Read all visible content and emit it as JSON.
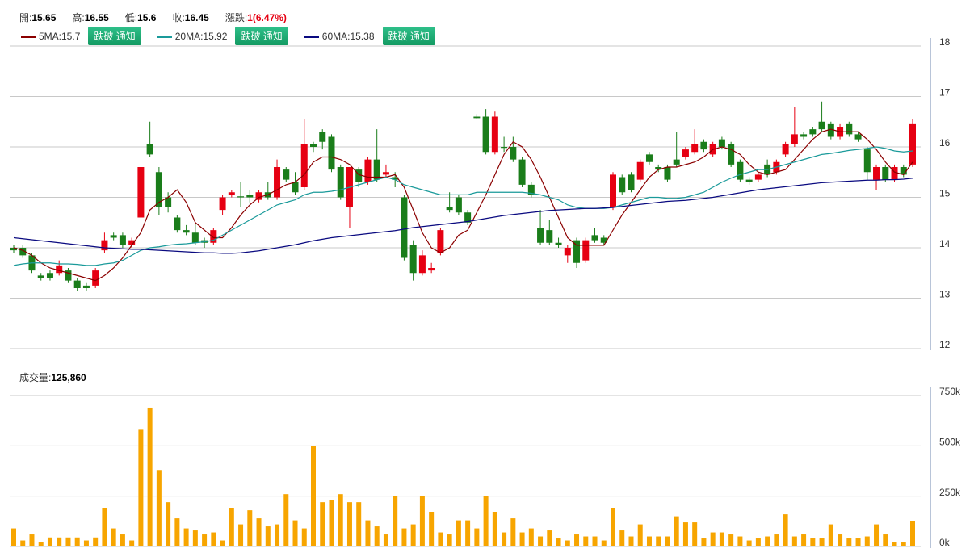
{
  "header": {
    "items": [
      {
        "label": "開:",
        "value": "15.65"
      },
      {
        "label": "高:",
        "value": "16.55"
      },
      {
        "label": "低:",
        "value": "15.6"
      },
      {
        "label": "收:",
        "value": "16.45"
      },
      {
        "label": "漲跌:",
        "value": "1(6.47%)"
      }
    ],
    "button": "跌破 通知",
    "volume_label": "成交量:",
    "volume_value": "125,860"
  },
  "chart_data": [
    {
      "type": "candlestick",
      "up_color": "#e60012",
      "down_color": "#1a7d1a",
      "ylim": [
        12,
        18
      ],
      "yticks": [
        12,
        13,
        14,
        15,
        16,
        17,
        18
      ],
      "grid": true,
      "open": [
        14.0,
        14.0,
        13.85,
        13.45,
        13.5,
        13.5,
        13.55,
        13.35,
        13.25,
        13.25,
        13.95,
        14.25,
        14.25,
        14.05,
        14.6,
        16.05,
        15.5,
        15.0,
        14.6,
        14.35,
        14.3,
        14.15,
        14.1,
        14.75,
        15.05,
        15.02,
        15.05,
        14.95,
        15.1,
        15.0,
        15.55,
        15.3,
        15.2,
        16.05,
        16.3,
        16.2,
        15.6,
        14.8,
        15.55,
        15.3,
        15.75,
        15.45,
        15.4,
        15.0,
        14.05,
        13.5,
        13.55,
        13.9,
        14.8,
        15.0,
        14.7,
        16.6,
        16.6,
        15.9,
        16.0,
        16.0,
        15.75,
        15.25,
        14.4,
        14.35,
        14.1,
        13.85,
        14.15,
        13.75,
        14.25,
        14.2,
        14.8,
        15.4,
        15.45,
        15.35,
        15.85,
        15.6,
        15.6,
        15.75,
        15.8,
        15.9,
        16.1,
        15.85,
        16.15,
        16.05,
        15.7,
        15.35,
        15.35,
        15.65,
        15.5,
        15.85,
        16.05,
        16.25,
        16.35,
        16.5,
        16.45,
        16.2,
        16.45,
        16.25,
        15.95,
        15.35,
        15.6,
        15.35,
        15.6,
        15.65
      ],
      "high": [
        14.05,
        14.05,
        13.9,
        13.5,
        13.55,
        13.75,
        13.6,
        13.4,
        13.3,
        13.6,
        14.3,
        14.3,
        14.3,
        14.2,
        15.6,
        16.5,
        15.6,
        15.1,
        14.65,
        14.45,
        14.5,
        14.2,
        14.4,
        15.05,
        15.15,
        15.3,
        15.15,
        15.15,
        15.3,
        15.75,
        15.6,
        15.5,
        16.55,
        16.1,
        16.35,
        16.25,
        15.65,
        15.6,
        15.6,
        15.8,
        16.35,
        15.65,
        15.5,
        15.05,
        14.15,
        13.95,
        13.7,
        14.4,
        15.1,
        15.05,
        14.75,
        16.65,
        16.75,
        16.7,
        16.2,
        16.2,
        15.8,
        15.3,
        14.75,
        14.55,
        14.2,
        14.05,
        14.2,
        14.2,
        14.4,
        14.25,
        15.5,
        15.45,
        15.5,
        15.75,
        15.9,
        15.65,
        15.65,
        16.3,
        16.0,
        16.35,
        16.15,
        16.1,
        16.2,
        16.1,
        15.75,
        15.4,
        15.5,
        15.75,
        15.75,
        16.1,
        16.8,
        16.3,
        16.4,
        16.9,
        16.5,
        16.45,
        16.5,
        16.3,
        16.0,
        15.65,
        15.65,
        15.65,
        15.65,
        16.55
      ],
      "low": [
        13.9,
        13.8,
        13.5,
        13.35,
        13.35,
        13.45,
        13.3,
        13.15,
        13.15,
        13.2,
        13.9,
        14.15,
        14.0,
        14.0,
        14.6,
        15.8,
        14.65,
        14.7,
        14.3,
        14.25,
        14.05,
        14.0,
        14.05,
        14.65,
        15.0,
        14.8,
        14.9,
        14.9,
        14.95,
        14.95,
        15.3,
        15.05,
        15.15,
        15.9,
        15.95,
        15.5,
        14.95,
        14.4,
        15.2,
        15.25,
        15.3,
        15.4,
        15.2,
        13.75,
        13.35,
        13.45,
        13.5,
        13.85,
        14.7,
        14.65,
        14.45,
        16.55,
        15.85,
        15.85,
        15.9,
        15.7,
        15.2,
        15.0,
        14.05,
        14.05,
        14.0,
        13.7,
        13.6,
        13.7,
        14.1,
        14.05,
        14.75,
        15.05,
        15.1,
        15.3,
        15.65,
        15.5,
        15.3,
        15.6,
        15.75,
        15.85,
        15.9,
        15.8,
        15.95,
        15.6,
        15.3,
        15.25,
        15.3,
        15.4,
        15.45,
        15.8,
        16.0,
        16.15,
        16.2,
        16.3,
        16.15,
        16.15,
        16.2,
        16.1,
        15.35,
        15.15,
        15.3,
        15.3,
        15.4,
        15.6
      ],
      "close": [
        13.95,
        13.85,
        13.55,
        13.4,
        13.4,
        13.65,
        13.35,
        13.2,
        13.2,
        13.55,
        14.15,
        14.2,
        14.05,
        14.15,
        15.6,
        15.85,
        14.8,
        14.8,
        14.35,
        14.3,
        14.1,
        14.1,
        14.35,
        15.0,
        15.1,
        15.0,
        15.0,
        15.1,
        15.0,
        15.6,
        15.35,
        15.1,
        16.05,
        16.0,
        16.1,
        15.55,
        15.0,
        15.6,
        15.3,
        15.75,
        15.35,
        15.5,
        15.35,
        13.8,
        13.5,
        13.85,
        13.6,
        14.35,
        14.75,
        14.7,
        14.5,
        16.57,
        15.9,
        16.6,
        15.98,
        15.75,
        15.25,
        15.05,
        14.1,
        14.1,
        14.05,
        14.0,
        13.7,
        14.15,
        14.15,
        14.1,
        15.45,
        15.1,
        15.15,
        15.7,
        15.7,
        15.55,
        15.35,
        15.65,
        15.95,
        16.05,
        15.95,
        16.05,
        16.0,
        15.65,
        15.35,
        15.3,
        15.45,
        15.45,
        15.7,
        16.05,
        16.25,
        16.2,
        16.25,
        16.35,
        16.2,
        16.4,
        16.25,
        16.15,
        15.5,
        15.6,
        15.35,
        15.6,
        15.45,
        16.45
      ],
      "series": [
        {
          "name": "5MA",
          "legend": "5MA:15.7",
          "color": "#8b0000",
          "values": [
            14.0,
            13.95,
            13.85,
            13.7,
            13.6,
            13.55,
            13.5,
            13.45,
            13.4,
            13.35,
            13.45,
            13.6,
            13.8,
            14.05,
            14.3,
            14.75,
            14.9,
            15.0,
            15.15,
            14.9,
            14.5,
            14.35,
            14.2,
            14.2,
            14.4,
            14.65,
            14.85,
            15.0,
            15.05,
            15.15,
            15.25,
            15.3,
            15.45,
            15.7,
            15.8,
            15.8,
            15.75,
            15.65,
            15.45,
            15.4,
            15.4,
            15.4,
            15.45,
            15.2,
            14.75,
            14.3,
            14.0,
            13.9,
            14.0,
            14.25,
            14.35,
            14.7,
            15.05,
            15.45,
            15.85,
            16.1,
            16.0,
            15.75,
            15.4,
            15.0,
            14.6,
            14.2,
            14.05,
            14.05,
            14.05,
            14.05,
            14.35,
            14.65,
            14.9,
            15.15,
            15.4,
            15.55,
            15.6,
            15.6,
            15.65,
            15.7,
            15.8,
            15.95,
            16.0,
            15.95,
            15.85,
            15.65,
            15.5,
            15.45,
            15.5,
            15.55,
            15.75,
            15.95,
            16.15,
            16.3,
            16.35,
            16.3,
            16.3,
            16.3,
            16.15,
            15.95,
            15.7,
            15.5,
            15.45,
            15.7
          ]
        },
        {
          "name": "20MA",
          "legend": "20MA:15.92",
          "color": "#1a9a9a",
          "values": [
            13.65,
            13.68,
            13.7,
            13.7,
            13.7,
            13.68,
            13.68,
            13.67,
            13.65,
            13.65,
            13.68,
            13.7,
            13.75,
            13.85,
            13.95,
            14.0,
            14.02,
            14.05,
            14.07,
            14.08,
            14.1,
            14.12,
            14.15,
            14.25,
            14.35,
            14.45,
            14.55,
            14.65,
            14.75,
            14.85,
            14.9,
            14.95,
            15.05,
            15.1,
            15.1,
            15.12,
            15.15,
            15.2,
            15.25,
            15.3,
            15.35,
            15.4,
            15.35,
            15.25,
            15.2,
            15.15,
            15.1,
            15.05,
            15.05,
            15.05,
            15.05,
            15.1,
            15.1,
            15.1,
            15.1,
            15.1,
            15.1,
            15.08,
            15.05,
            15.0,
            14.95,
            14.85,
            14.8,
            14.78,
            14.78,
            14.78,
            14.8,
            14.85,
            14.9,
            14.95,
            15.0,
            15.0,
            14.98,
            14.98,
            15.0,
            15.05,
            15.1,
            15.2,
            15.3,
            15.38,
            15.45,
            15.5,
            15.55,
            15.55,
            15.6,
            15.65,
            15.7,
            15.75,
            15.8,
            15.85,
            15.87,
            15.9,
            15.93,
            15.95,
            15.97,
            16.0,
            15.97,
            15.92,
            15.9,
            15.92
          ]
        },
        {
          "name": "60MA",
          "legend": "60MA:15.38",
          "color": "#0a0a80",
          "values": [
            14.2,
            14.18,
            14.16,
            14.14,
            14.12,
            14.1,
            14.08,
            14.06,
            14.04,
            14.02,
            14.0,
            13.99,
            13.98,
            13.97,
            13.97,
            13.96,
            13.95,
            13.94,
            13.93,
            13.92,
            13.91,
            13.9,
            13.9,
            13.89,
            13.89,
            13.9,
            13.92,
            13.94,
            13.97,
            14.0,
            14.03,
            14.06,
            14.1,
            14.14,
            14.17,
            14.2,
            14.22,
            14.24,
            14.26,
            14.28,
            14.3,
            14.32,
            14.34,
            14.37,
            14.4,
            14.42,
            14.44,
            14.46,
            14.48,
            14.5,
            14.52,
            14.55,
            14.58,
            14.61,
            14.64,
            14.66,
            14.68,
            14.7,
            14.72,
            14.74,
            14.75,
            14.76,
            14.77,
            14.78,
            14.78,
            14.79,
            14.8,
            14.82,
            14.84,
            14.86,
            14.88,
            14.9,
            14.92,
            14.93,
            14.94,
            14.96,
            14.98,
            15.0,
            15.03,
            15.06,
            15.09,
            15.12,
            15.15,
            15.17,
            15.19,
            15.21,
            15.23,
            15.25,
            15.27,
            15.29,
            15.3,
            15.31,
            15.32,
            15.33,
            15.34,
            15.34,
            15.35,
            15.35,
            15.36,
            15.38
          ]
        }
      ]
    },
    {
      "type": "bar",
      "color": "#f7a500",
      "ylim": [
        0,
        750000
      ],
      "yticks": [
        {
          "value": 0,
          "label": "0k"
        },
        {
          "value": 250000,
          "label": "250k"
        },
        {
          "value": 500000,
          "label": "500k"
        },
        {
          "value": 750000,
          "label": "750k"
        }
      ],
      "grid": true,
      "values": [
        90000,
        30000,
        60000,
        20000,
        45000,
        45000,
        45000,
        45000,
        30000,
        45000,
        190000,
        90000,
        60000,
        30000,
        580000,
        690000,
        380000,
        220000,
        140000,
        90000,
        80000,
        60000,
        70000,
        30000,
        190000,
        110000,
        180000,
        140000,
        100000,
        110000,
        260000,
        130000,
        90000,
        500000,
        220000,
        230000,
        260000,
        220000,
        220000,
        130000,
        100000,
        60000,
        250000,
        90000,
        110000,
        250000,
        170000,
        70000,
        60000,
        130000,
        130000,
        90000,
        250000,
        170000,
        70000,
        140000,
        70000,
        90000,
        50000,
        80000,
        40000,
        30000,
        60000,
        50000,
        50000,
        30000,
        190000,
        80000,
        50000,
        110000,
        50000,
        50000,
        50000,
        150000,
        120000,
        120000,
        40000,
        70000,
        70000,
        60000,
        50000,
        30000,
        40000,
        50000,
        60000,
        160000,
        50000,
        60000,
        40000,
        40000,
        110000,
        60000,
        40000,
        40000,
        50000,
        110000,
        60000,
        20000,
        20000,
        125860
      ]
    }
  ]
}
